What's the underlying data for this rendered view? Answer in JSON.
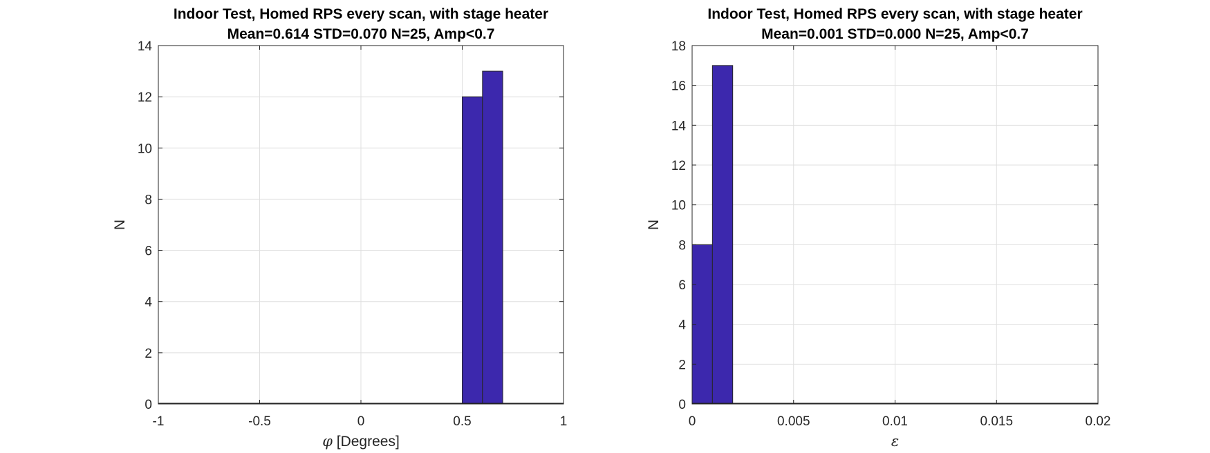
{
  "chart_data": [
    {
      "type": "bar",
      "title": "Indoor Test, Homed RPS every scan, with stage heater",
      "subtitle": "Mean=0.614 STD=0.070 N=25, Amp<0.7",
      "xlabel_symbol": "φ",
      "xlabel_text": " [Degrees]",
      "ylabel": "N",
      "xlim": [
        -1,
        1
      ],
      "ylim": [
        0,
        14
      ],
      "xticks": [
        -1,
        -0.5,
        0,
        0.5,
        1
      ],
      "xtick_labels": [
        "-1",
        "-0.5",
        "0",
        "0.5",
        "1"
      ],
      "yticks": [
        0,
        2,
        4,
        6,
        8,
        10,
        12,
        14
      ],
      "ytick_labels": [
        "0",
        "2",
        "4",
        "6",
        "8",
        "10",
        "12",
        "14"
      ],
      "grid": true,
      "bins": [
        {
          "x0": 0.5,
          "x1": 0.6,
          "value": 12
        },
        {
          "x0": 0.6,
          "x1": 0.7,
          "value": 13
        }
      ],
      "bar_color": "#3c28ad"
    },
    {
      "type": "bar",
      "title": "Indoor Test, Homed RPS every scan, with stage heater",
      "subtitle": "Mean=0.001 STD=0.000 N=25, Amp<0.7",
      "xlabel_symbol": "ε",
      "xlabel_text": "",
      "ylabel": "N",
      "xlim": [
        0,
        0.02
      ],
      "ylim": [
        0,
        18
      ],
      "xticks": [
        0,
        0.005,
        0.01,
        0.015,
        0.02
      ],
      "xtick_labels": [
        "0",
        "0.005",
        "0.01",
        "0.015",
        "0.02"
      ],
      "yticks": [
        0,
        2,
        4,
        6,
        8,
        10,
        12,
        14,
        16,
        18
      ],
      "ytick_labels": [
        "0",
        "2",
        "4",
        "6",
        "8",
        "10",
        "12",
        "14",
        "16",
        "18"
      ],
      "grid": true,
      "bins": [
        {
          "x0": 0,
          "x1": 0.001,
          "value": 8
        },
        {
          "x0": 0.001,
          "x1": 0.002,
          "value": 17
        }
      ],
      "bar_color": "#3c28ad"
    }
  ]
}
